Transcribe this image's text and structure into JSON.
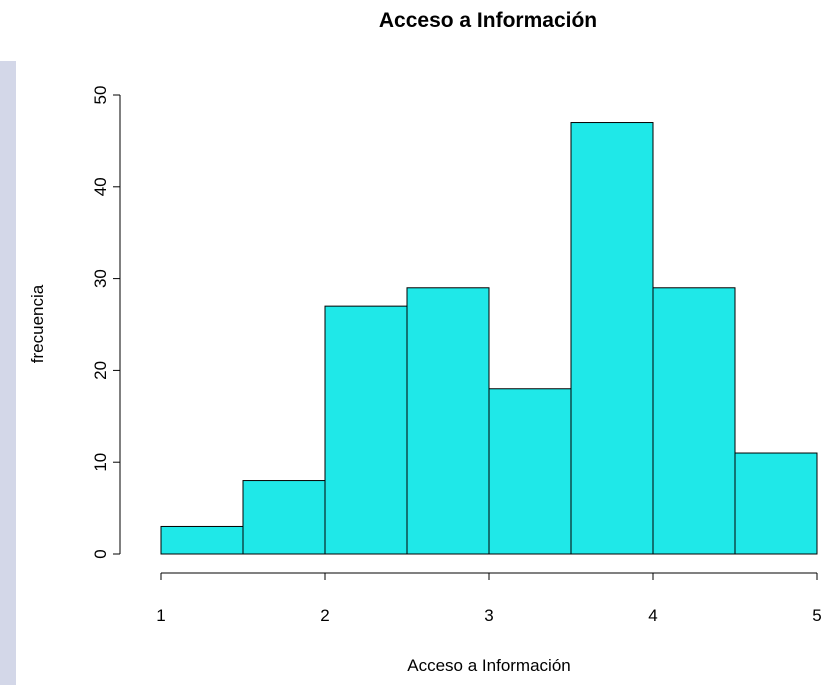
{
  "chart_data": {
    "type": "bar",
    "title": "Acceso a Información",
    "xlabel": "Acceso a Información",
    "ylabel": "frecuencia",
    "bins": [
      {
        "from": 1.0,
        "to": 1.5,
        "value": 3
      },
      {
        "from": 1.5,
        "to": 2.0,
        "value": 8
      },
      {
        "from": 2.0,
        "to": 2.5,
        "value": 27
      },
      {
        "from": 2.5,
        "to": 3.0,
        "value": 29
      },
      {
        "from": 3.0,
        "to": 3.5,
        "value": 18
      },
      {
        "from": 3.5,
        "to": 4.0,
        "value": 47
      },
      {
        "from": 4.0,
        "to": 4.5,
        "value": 29
      },
      {
        "from": 4.5,
        "to": 5.0,
        "value": 11
      }
    ],
    "xlim": [
      1,
      5
    ],
    "ylim": [
      0,
      50
    ],
    "xticks": [
      "1",
      "2",
      "3",
      "4",
      "5"
    ],
    "yticks": [
      "0",
      "10",
      "20",
      "30",
      "40",
      "50"
    ],
    "bar_color": "#1fe8e8",
    "grid": false
  }
}
